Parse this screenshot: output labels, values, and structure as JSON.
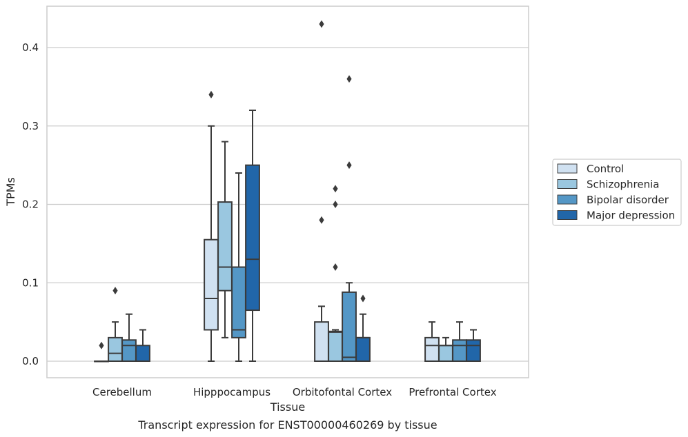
{
  "chart_data": {
    "type": "box",
    "title": "Transcript expression for ENST00000460269 by tissue",
    "xlabel": "Tissue",
    "ylabel": "TPMs",
    "ylim": [
      -0.021,
      0.453
    ],
    "yticks": [
      "0.0",
      "0.1",
      "0.2",
      "0.3",
      "0.4"
    ],
    "ytick_values": [
      0,
      0.1,
      0.2,
      0.3,
      0.4
    ],
    "grid": true,
    "legend_position": "right",
    "categories": [
      "Cerebellum",
      "Hipppocampus",
      "Orbitofontal Cortex",
      "Prefrontal Cortex"
    ],
    "series": [
      {
        "name": "Control",
        "color": "#d0e1f1",
        "boxes": [
          {
            "q1": 0,
            "median": 0,
            "q3": 0,
            "whislo": 0,
            "whishi": 0,
            "fliers": [
              0.02
            ]
          },
          {
            "q1": 0.04,
            "median": 0.08,
            "q3": 0.155,
            "whislo": 0,
            "whishi": 0.3,
            "fliers": [
              0.34
            ]
          },
          {
            "q1": 0,
            "median": 0,
            "q3": 0.05,
            "whislo": 0,
            "whishi": 0.07,
            "fliers": [
              0.18,
              0.43
            ]
          },
          {
            "q1": 0,
            "median": 0.02,
            "q3": 0.03,
            "whislo": 0,
            "whishi": 0.05,
            "fliers": []
          }
        ]
      },
      {
        "name": "Schizophrenia",
        "color": "#9ac7e0",
        "boxes": [
          {
            "q1": 0,
            "median": 0.01,
            "q3": 0.03,
            "whislo": 0,
            "whishi": 0.05,
            "fliers": [
              0.09
            ]
          },
          {
            "q1": 0.09,
            "median": 0.12,
            "q3": 0.203,
            "whislo": 0.03,
            "whishi": 0.28,
            "fliers": []
          },
          {
            "q1": 0,
            "median": 0.037,
            "q3": 0.038,
            "whislo": 0,
            "whishi": 0.04,
            "fliers": [
              0.12,
              0.2,
              0.22
            ]
          },
          {
            "q1": 0,
            "median": 0.02,
            "q3": 0.02,
            "whislo": 0,
            "whishi": 0.03,
            "fliers": []
          }
        ]
      },
      {
        "name": "Bipolar disorder",
        "color": "#5497c6",
        "boxes": [
          {
            "q1": 0,
            "median": 0.02,
            "q3": 0.027,
            "whislo": 0,
            "whishi": 0.06,
            "fliers": []
          },
          {
            "q1": 0.03,
            "median": 0.04,
            "q3": 0.12,
            "whislo": 0,
            "whishi": 0.24,
            "fliers": []
          },
          {
            "q1": 0,
            "median": 0.005,
            "q3": 0.088,
            "whislo": 0,
            "whishi": 0.1,
            "fliers": [
              0.25,
              0.36
            ]
          },
          {
            "q1": 0,
            "median": 0.02,
            "q3": 0.027,
            "whislo": 0,
            "whishi": 0.05,
            "fliers": []
          }
        ]
      },
      {
        "name": "Major depression",
        "color": "#2166a9",
        "boxes": [
          {
            "q1": 0,
            "median": 0,
            "q3": 0.02,
            "whislo": 0,
            "whishi": 0.04,
            "fliers": []
          },
          {
            "q1": 0.065,
            "median": 0.13,
            "q3": 0.25,
            "whislo": 0,
            "whishi": 0.32,
            "fliers": []
          },
          {
            "q1": 0,
            "median": 0.03,
            "q3": 0.03,
            "whislo": 0,
            "whishi": 0.06,
            "fliers": [
              0.08
            ]
          },
          {
            "q1": 0,
            "median": 0.02,
            "q3": 0.027,
            "whislo": 0,
            "whishi": 0.04,
            "fliers": []
          }
        ]
      }
    ]
  },
  "style": {
    "edge_color": "#3b3b3b",
    "grid_color": "#cccccc",
    "spine_color": "#cccccc"
  }
}
